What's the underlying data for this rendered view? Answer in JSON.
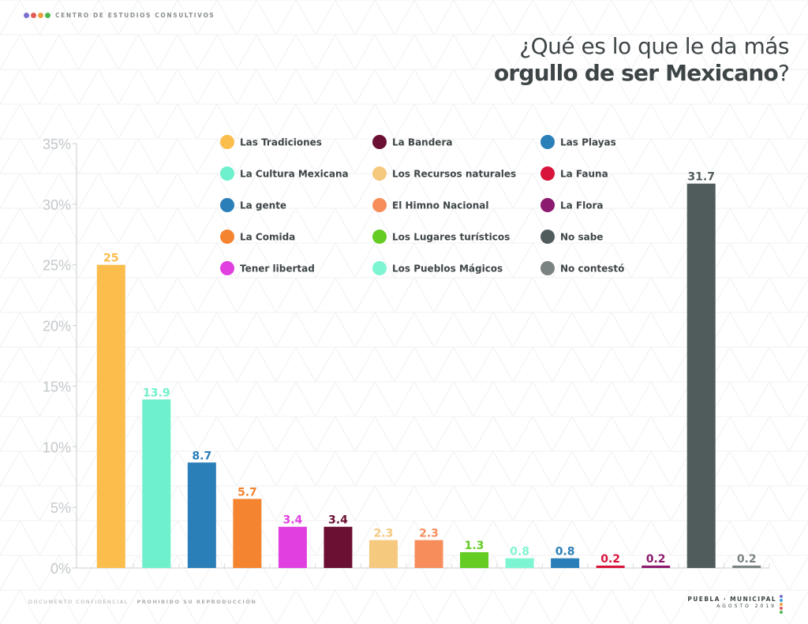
{
  "header": {
    "org_name": "CENTRO DE ESTUDIOS CONSULTIVOS",
    "dot_colors": [
      "#7b6fd0",
      "#e05a5a",
      "#f0a040",
      "#4cb84c"
    ]
  },
  "footer": {
    "left_prefix": "DOCUMENTO CONFIDENCIAL · ",
    "left_bold": "PROHIBIDO SU REPRODUCCIÓN",
    "right_line1": "PUEBLA · MUNICIPAL",
    "right_line2": "AGOSTO 2019",
    "dot_colors": [
      "#7b6fd0",
      "#3aa0d8",
      "#f0a040",
      "#e05a5a",
      "#4cb84c"
    ]
  },
  "chart_data": {
    "type": "bar",
    "title_line1": "¿Qué es lo que le da más",
    "title_line2": "orgullo de ser Mexicano",
    "title_suffix": "?",
    "ylim": [
      0,
      35
    ],
    "yticks": [
      "0%",
      "5%",
      "10%",
      "15%",
      "20%",
      "25%",
      "30%",
      "35%"
    ],
    "grid": false,
    "legend_position": "top-center",
    "categories": [
      "Las Tradiciones",
      "La Cultura Mexicana",
      "La gente",
      "La Comida",
      "Tener libertad",
      "La Bandera",
      "Los Recursos naturales",
      "El Himno Nacional",
      "Los Lugares turísticos",
      "Los Pueblos Mágicos",
      "Las Playas",
      "La Fauna",
      "La Flora",
      "No sabe",
      "No contestó"
    ],
    "values": [
      25,
      13.9,
      8.7,
      5.7,
      3.4,
      3.4,
      2.3,
      2.3,
      1.3,
      0.8,
      0.8,
      0.2,
      0.2,
      31.7,
      0.2
    ],
    "labels": [
      "25",
      "13.9",
      "8.7",
      "5.7",
      "3.4",
      "3.4",
      "2.3",
      "2.3",
      "1.3",
      "0.8",
      "0.8",
      "0.2",
      "0.2",
      "31.7",
      "0.2"
    ],
    "colors": [
      "#fbbd4b",
      "#6ff0cc",
      "#2b7fb8",
      "#f58431",
      "#e040e0",
      "#6b0f33",
      "#f5c97e",
      "#f88d5c",
      "#64cc22",
      "#7ef5d2",
      "#2b7fb8",
      "#d8143a",
      "#8c1a6e",
      "#505b5c",
      "#7a8282"
    ],
    "label_colors": [
      "#fbbd4b",
      "#6ff0cc",
      "#2b7fb8",
      "#f58431",
      "#e040e0",
      "#6b0f33",
      "#f5c97e",
      "#f88d5c",
      "#64cc22",
      "#7ef5d2",
      "#2b7fb8",
      "#d8143a",
      "#8c1a6e",
      "#505b5c",
      "#7a8282"
    ],
    "legend_columns": [
      [
        "Las Tradiciones",
        "La Cultura Mexicana",
        "La gente",
        "La Comida",
        "Tener libertad"
      ],
      [
        "La Bandera",
        "Los Recursos naturales",
        "El Himno Nacional",
        "Los Lugares turísticos",
        "Los Pueblos Mágicos"
      ],
      [
        "Las Playas",
        "La Fauna",
        "La Flora",
        "No sabe",
        "No contestó"
      ]
    ]
  }
}
